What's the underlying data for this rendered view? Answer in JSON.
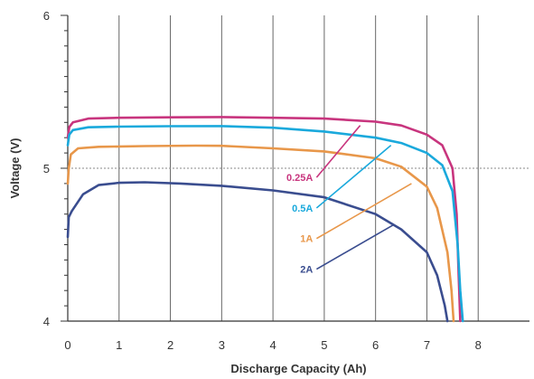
{
  "chart_data": {
    "type": "line",
    "title": "",
    "xlabel": "Discharge Capacity (Ah)",
    "ylabel": "Voltage (V)",
    "xlim": [
      0,
      9
    ],
    "ylim": [
      4,
      6
    ],
    "x_ticks": [
      "0",
      "1",
      "2",
      "3",
      "4",
      "5",
      "6",
      "7",
      "8"
    ],
    "y_ticks": [
      "4",
      "5",
      "6"
    ],
    "grid": "vertical lines at each integer x; dashed horizontal reference line at 5 V",
    "reference_line": 5,
    "series": [
      {
        "name": "0.25A",
        "color": "#c8357e",
        "points": [
          [
            0.0,
            5.2
          ],
          [
            0.03,
            5.27
          ],
          [
            0.1,
            5.3
          ],
          [
            0.4,
            5.325
          ],
          [
            1,
            5.33
          ],
          [
            2,
            5.333
          ],
          [
            3,
            5.335
          ],
          [
            4,
            5.33
          ],
          [
            5,
            5.325
          ],
          [
            6,
            5.305
          ],
          [
            6.5,
            5.28
          ],
          [
            7,
            5.22
          ],
          [
            7.3,
            5.15
          ],
          [
            7.5,
            5.0
          ],
          [
            7.58,
            4.7
          ],
          [
            7.62,
            4.3
          ],
          [
            7.65,
            4.0
          ]
        ],
        "label_pos": [
          4.85,
          4.94
        ],
        "pointer_to": [
          5.7,
          5.28
        ]
      },
      {
        "name": "0.5A",
        "color": "#1aa9dc",
        "points": [
          [
            0.0,
            5.15
          ],
          [
            0.03,
            5.22
          ],
          [
            0.1,
            5.25
          ],
          [
            0.4,
            5.268
          ],
          [
            1,
            5.272
          ],
          [
            2,
            5.275
          ],
          [
            3,
            5.276
          ],
          [
            4,
            5.265
          ],
          [
            5,
            5.24
          ],
          [
            6,
            5.2
          ],
          [
            6.5,
            5.165
          ],
          [
            7,
            5.1
          ],
          [
            7.3,
            5.02
          ],
          [
            7.5,
            4.85
          ],
          [
            7.6,
            4.5
          ],
          [
            7.65,
            4.2
          ],
          [
            7.7,
            4.0
          ]
        ],
        "label_pos": [
          4.85,
          4.74
        ],
        "pointer_to": [
          6.3,
          5.15
        ]
      },
      {
        "name": "1A",
        "color": "#e8974a",
        "points": [
          [
            0.0,
            4.9
          ],
          [
            0.02,
            5.0
          ],
          [
            0.06,
            5.09
          ],
          [
            0.2,
            5.13
          ],
          [
            0.6,
            5.14
          ],
          [
            1.5,
            5.145
          ],
          [
            2.5,
            5.148
          ],
          [
            3,
            5.147
          ],
          [
            4,
            5.13
          ],
          [
            5,
            5.11
          ],
          [
            6,
            5.065
          ],
          [
            6.5,
            5.01
          ],
          [
            7,
            4.88
          ],
          [
            7.2,
            4.74
          ],
          [
            7.4,
            4.45
          ],
          [
            7.48,
            4.2
          ],
          [
            7.52,
            4.0
          ]
        ],
        "label_pos": [
          4.85,
          4.54
        ],
        "pointer_to": [
          6.7,
          4.9
        ]
      },
      {
        "name": "2A",
        "color": "#3a4d8f",
        "points": [
          [
            0.0,
            4.55
          ],
          [
            0.02,
            4.68
          ],
          [
            0.08,
            4.72
          ],
          [
            0.3,
            4.83
          ],
          [
            0.6,
            4.89
          ],
          [
            1.0,
            4.905
          ],
          [
            1.5,
            4.908
          ],
          [
            2.2,
            4.9
          ],
          [
            3,
            4.885
          ],
          [
            4,
            4.855
          ],
          [
            5,
            4.81
          ],
          [
            6,
            4.7
          ],
          [
            6.5,
            4.6
          ],
          [
            7.0,
            4.45
          ],
          [
            7.2,
            4.3
          ],
          [
            7.35,
            4.1
          ],
          [
            7.4,
            4.0
          ]
        ],
        "label_pos": [
          4.85,
          4.34
        ],
        "pointer_to": [
          6.35,
          4.63
        ]
      }
    ]
  }
}
